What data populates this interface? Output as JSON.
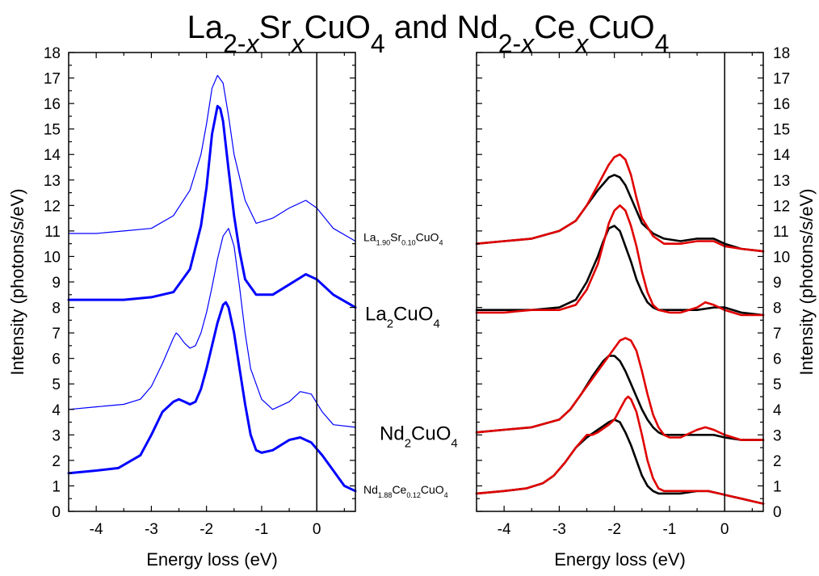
{
  "figure": {
    "title_parts": [
      {
        "t": "La",
        "s": "n"
      },
      {
        "t": "2-",
        "s": "sub"
      },
      {
        "t": "x",
        "s": "subi"
      },
      {
        "t": "Sr",
        "s": "n"
      },
      {
        "t": "x",
        "s": "subi"
      },
      {
        "t": "CuO",
        "s": "n"
      },
      {
        "t": "4",
        "s": "sub"
      },
      {
        "t": " and Nd",
        "s": "n"
      },
      {
        "t": "2-",
        "s": "sub"
      },
      {
        "t": "x",
        "s": "subi"
      },
      {
        "t": "Ce",
        "s": "n"
      },
      {
        "t": "x",
        "s": "subi"
      },
      {
        "t": "CuO",
        "s": "n"
      },
      {
        "t": "4",
        "s": "sub"
      }
    ],
    "sample_labels": [
      {
        "id": "la190",
        "parts": [
          {
            "t": "La",
            "s": "n"
          },
          {
            "t": "1.90",
            "s": "sub"
          },
          {
            "t": "Sr",
            "s": "n"
          },
          {
            "t": "0.10",
            "s": "sub"
          },
          {
            "t": "CuO",
            "s": "n"
          },
          {
            "t": "4",
            "s": "sub"
          }
        ],
        "y": 10.6
      },
      {
        "id": "la2cuo4",
        "parts": [
          {
            "t": "La",
            "s": "n"
          },
          {
            "t": "2",
            "s": "sub"
          },
          {
            "t": "CuO",
            "s": "n"
          },
          {
            "t": "4",
            "s": "sub"
          }
        ],
        "y": 7.5
      },
      {
        "id": "nd2cuo4",
        "parts": [
          {
            "t": "Nd",
            "s": "n"
          },
          {
            "t": "2",
            "s": "sub"
          },
          {
            "t": "CuO",
            "s": "n"
          },
          {
            "t": "4",
            "s": "sub"
          }
        ],
        "y": 2.8
      },
      {
        "id": "nd188",
        "parts": [
          {
            "t": "Nd",
            "s": "n"
          },
          {
            "t": "1.88",
            "s": "sub"
          },
          {
            "t": "Ce",
            "s": "n"
          },
          {
            "t": "0.12",
            "s": "sub"
          },
          {
            "t": "CuO",
            "s": "n"
          },
          {
            "t": "4",
            "s": "sub"
          }
        ],
        "y": 0.7
      }
    ]
  },
  "chart_data": [
    {
      "type": "line",
      "panel": "left",
      "xlabel": "Energy loss (eV)",
      "ylabel": "Intensity (photons/s/eV)",
      "xlim": [
        -4.5,
        0.7
      ],
      "ylim": [
        0,
        18
      ],
      "xticks": [
        -4,
        -3,
        -2,
        -1,
        0
      ],
      "yticks": [
        0,
        1,
        2,
        3,
        4,
        5,
        6,
        7,
        8,
        9,
        10,
        11,
        12,
        13,
        14,
        15,
        16,
        17,
        18
      ],
      "vline": 0,
      "series": [
        {
          "color": "#0000ff",
          "width": 1.2,
          "x": [
            -4.5,
            -4.0,
            -3.5,
            -3.0,
            -2.6,
            -2.3,
            -2.1,
            -2.0,
            -1.9,
            -1.8,
            -1.7,
            -1.6,
            -1.5,
            -1.3,
            -1.1,
            -0.8,
            -0.5,
            -0.2,
            0.0,
            0.3,
            0.7
          ],
          "y": [
            10.9,
            10.9,
            11.0,
            11.1,
            11.6,
            12.6,
            14.0,
            15.2,
            16.6,
            17.1,
            16.8,
            15.5,
            14.0,
            12.2,
            11.3,
            11.5,
            11.9,
            12.2,
            11.9,
            11.1,
            10.6
          ]
        },
        {
          "color": "#0000ff",
          "width": 3,
          "x": [
            -4.5,
            -4.0,
            -3.5,
            -3.0,
            -2.6,
            -2.3,
            -2.1,
            -2.0,
            -1.9,
            -1.8,
            -1.75,
            -1.7,
            -1.6,
            -1.5,
            -1.4,
            -1.3,
            -1.1,
            -0.8,
            -0.5,
            -0.2,
            0.0,
            0.3,
            0.7
          ],
          "y": [
            8.3,
            8.3,
            8.3,
            8.4,
            8.6,
            9.5,
            11.2,
            12.7,
            14.8,
            15.9,
            15.8,
            15.3,
            13.4,
            11.6,
            10.2,
            9.1,
            8.5,
            8.5,
            8.9,
            9.3,
            9.1,
            8.5,
            8.0
          ]
        },
        {
          "color": "#0000ff",
          "width": 1.2,
          "x": [
            -4.5,
            -4.0,
            -3.5,
            -3.2,
            -3.0,
            -2.8,
            -2.6,
            -2.55,
            -2.5,
            -2.4,
            -2.3,
            -2.2,
            -2.1,
            -2.0,
            -1.9,
            -1.8,
            -1.7,
            -1.6,
            -1.5,
            -1.4,
            -1.3,
            -1.2,
            -1.0,
            -0.8,
            -0.5,
            -0.3,
            -0.1,
            0.1,
            0.3,
            0.7
          ],
          "y": [
            4.0,
            4.1,
            4.2,
            4.4,
            4.9,
            5.8,
            6.8,
            7.0,
            6.9,
            6.6,
            6.4,
            6.5,
            7.0,
            7.8,
            8.8,
            9.9,
            10.8,
            11.1,
            10.4,
            8.8,
            7.0,
            5.6,
            4.4,
            4.0,
            4.3,
            4.7,
            4.6,
            3.9,
            3.4,
            3.3
          ]
        },
        {
          "color": "#0000ff",
          "width": 3,
          "x": [
            -4.5,
            -4.0,
            -3.6,
            -3.2,
            -3.0,
            -2.8,
            -2.6,
            -2.5,
            -2.4,
            -2.3,
            -2.2,
            -2.1,
            -2.0,
            -1.9,
            -1.8,
            -1.7,
            -1.65,
            -1.6,
            -1.5,
            -1.4,
            -1.3,
            -1.2,
            -1.1,
            -1.0,
            -0.8,
            -0.5,
            -0.3,
            -0.1,
            0.1,
            0.3,
            0.5,
            0.7
          ],
          "y": [
            1.5,
            1.6,
            1.7,
            2.2,
            3.0,
            3.9,
            4.3,
            4.4,
            4.3,
            4.2,
            4.3,
            4.8,
            5.6,
            6.5,
            7.4,
            8.1,
            8.2,
            8.0,
            7.0,
            5.6,
            4.2,
            3.0,
            2.4,
            2.3,
            2.4,
            2.8,
            2.9,
            2.7,
            2.2,
            1.6,
            1.0,
            0.8
          ]
        }
      ]
    },
    {
      "type": "line",
      "panel": "right",
      "xlabel": "Energy loss (eV)",
      "ylabel": "Intensity (photons/s/eV)",
      "xlim": [
        -4.5,
        0.7
      ],
      "ylim": [
        0,
        18
      ],
      "xticks": [
        -4,
        -3,
        -2,
        -1,
        0
      ],
      "yticks": [
        0,
        1,
        2,
        3,
        4,
        5,
        6,
        7,
        8,
        9,
        10,
        11,
        12,
        13,
        14,
        15,
        16,
        17,
        18
      ],
      "vline": 0,
      "series": [
        {
          "color": "#000000",
          "width": 2.6,
          "x": [
            -4.5,
            -4.0,
            -3.5,
            -3.0,
            -2.7,
            -2.5,
            -2.3,
            -2.1,
            -2.0,
            -1.9,
            -1.8,
            -1.7,
            -1.6,
            -1.5,
            -1.3,
            -1.1,
            -0.8,
            -0.5,
            -0.2,
            0.0,
            0.3,
            0.7
          ],
          "y": [
            10.5,
            10.6,
            10.7,
            11.0,
            11.4,
            12.0,
            12.6,
            13.1,
            13.2,
            13.1,
            12.8,
            12.3,
            11.8,
            11.3,
            10.9,
            10.7,
            10.6,
            10.7,
            10.7,
            10.5,
            10.3,
            10.2
          ]
        },
        {
          "color": "#e00000",
          "width": 2.6,
          "x": [
            -4.5,
            -4.0,
            -3.5,
            -3.0,
            -2.7,
            -2.5,
            -2.3,
            -2.1,
            -2.0,
            -1.9,
            -1.8,
            -1.7,
            -1.6,
            -1.5,
            -1.3,
            -1.1,
            -0.8,
            -0.5,
            -0.2,
            0.0,
            0.3,
            0.7
          ],
          "y": [
            10.5,
            10.6,
            10.7,
            11.0,
            11.4,
            12.0,
            12.8,
            13.6,
            13.9,
            14.0,
            13.8,
            13.2,
            12.3,
            11.5,
            10.8,
            10.5,
            10.5,
            10.6,
            10.6,
            10.4,
            10.3,
            10.2
          ]
        },
        {
          "color": "#000000",
          "width": 2.6,
          "x": [
            -4.5,
            -4.0,
            -3.5,
            -3.0,
            -2.7,
            -2.5,
            -2.3,
            -2.2,
            -2.1,
            -2.0,
            -1.9,
            -1.8,
            -1.7,
            -1.6,
            -1.5,
            -1.4,
            -1.3,
            -1.2,
            -1.0,
            -0.8,
            -0.5,
            -0.2,
            0.0,
            0.3,
            0.7
          ],
          "y": [
            7.9,
            7.9,
            7.9,
            8.0,
            8.3,
            9.0,
            10.0,
            10.6,
            11.1,
            11.2,
            11.0,
            10.4,
            9.8,
            9.1,
            8.6,
            8.2,
            8.0,
            7.9,
            7.9,
            7.9,
            7.9,
            8.0,
            8.0,
            7.8,
            7.7
          ]
        },
        {
          "color": "#e00000",
          "width": 2.6,
          "x": [
            -4.5,
            -4.0,
            -3.5,
            -3.0,
            -2.7,
            -2.5,
            -2.3,
            -2.2,
            -2.1,
            -2.0,
            -1.9,
            -1.8,
            -1.7,
            -1.6,
            -1.5,
            -1.4,
            -1.3,
            -1.2,
            -1.0,
            -0.8,
            -0.5,
            -0.35,
            -0.2,
            0.0,
            0.3,
            0.7
          ],
          "y": [
            7.8,
            7.8,
            7.9,
            7.9,
            8.1,
            8.7,
            9.7,
            10.5,
            11.3,
            11.8,
            12.0,
            11.8,
            11.2,
            10.4,
            9.4,
            8.6,
            8.1,
            7.9,
            7.8,
            7.8,
            8.0,
            8.2,
            8.1,
            7.9,
            7.7,
            7.7
          ]
        },
        {
          "color": "#000000",
          "width": 2.6,
          "x": [
            -4.5,
            -4.0,
            -3.5,
            -3.0,
            -2.8,
            -2.6,
            -2.4,
            -2.2,
            -2.1,
            -2.0,
            -1.9,
            -1.8,
            -1.7,
            -1.6,
            -1.5,
            -1.4,
            -1.3,
            -1.2,
            -1.1,
            -1.0,
            -0.8,
            -0.5,
            -0.2,
            0.0,
            0.3,
            0.7
          ],
          "y": [
            3.1,
            3.2,
            3.3,
            3.6,
            4.0,
            4.6,
            5.3,
            5.9,
            6.1,
            6.1,
            5.9,
            5.5,
            5.0,
            4.5,
            4.0,
            3.6,
            3.3,
            3.1,
            3.0,
            3.0,
            3.0,
            3.0,
            3.0,
            2.9,
            2.8,
            2.8
          ]
        },
        {
          "color": "#e00000",
          "width": 2.6,
          "x": [
            -4.5,
            -4.0,
            -3.5,
            -3.0,
            -2.8,
            -2.6,
            -2.4,
            -2.2,
            -2.1,
            -2.0,
            -1.9,
            -1.8,
            -1.7,
            -1.6,
            -1.5,
            -1.4,
            -1.3,
            -1.2,
            -1.1,
            -1.0,
            -0.8,
            -0.5,
            -0.35,
            -0.2,
            0.0,
            0.3,
            0.7
          ],
          "y": [
            3.1,
            3.2,
            3.3,
            3.6,
            4.0,
            4.6,
            5.2,
            5.8,
            6.1,
            6.4,
            6.7,
            6.8,
            6.7,
            6.3,
            5.5,
            4.6,
            3.8,
            3.3,
            3.0,
            2.9,
            2.9,
            3.2,
            3.3,
            3.2,
            3.0,
            2.8,
            2.8
          ]
        },
        {
          "color": "#000000",
          "width": 2.6,
          "x": [
            -4.5,
            -4.0,
            -3.6,
            -3.3,
            -3.1,
            -2.9,
            -2.7,
            -2.5,
            -2.3,
            -2.1,
            -2.0,
            -1.9,
            -1.8,
            -1.7,
            -1.6,
            -1.5,
            -1.4,
            -1.3,
            -1.2,
            -1.1,
            -1.0,
            -0.8,
            -0.5,
            -0.3,
            -0.1,
            0.1,
            0.3,
            0.5,
            0.7
          ],
          "y": [
            0.7,
            0.8,
            0.9,
            1.1,
            1.4,
            1.9,
            2.5,
            2.9,
            3.2,
            3.5,
            3.6,
            3.5,
            3.1,
            2.6,
            2.0,
            1.4,
            1.0,
            0.8,
            0.7,
            0.7,
            0.7,
            0.7,
            0.8,
            0.8,
            0.7,
            0.6,
            0.5,
            0.4,
            0.3
          ]
        },
        {
          "color": "#e00000",
          "width": 2.6,
          "x": [
            -4.5,
            -4.0,
            -3.6,
            -3.3,
            -3.1,
            -2.9,
            -2.7,
            -2.5,
            -2.4,
            -2.3,
            -2.1,
            -2.0,
            -1.9,
            -1.8,
            -1.75,
            -1.7,
            -1.6,
            -1.5,
            -1.4,
            -1.3,
            -1.2,
            -1.1,
            -1.0,
            -0.8,
            -0.5,
            -0.3,
            -0.1,
            0.1,
            0.3,
            0.5,
            0.7
          ],
          "y": [
            0.7,
            0.8,
            0.9,
            1.1,
            1.4,
            1.9,
            2.5,
            3.0,
            3.0,
            3.1,
            3.4,
            3.6,
            4.0,
            4.4,
            4.5,
            4.4,
            3.9,
            3.0,
            2.0,
            1.3,
            0.9,
            0.8,
            0.8,
            0.8,
            0.8,
            0.8,
            0.7,
            0.6,
            0.5,
            0.4,
            0.3
          ]
        }
      ]
    }
  ]
}
